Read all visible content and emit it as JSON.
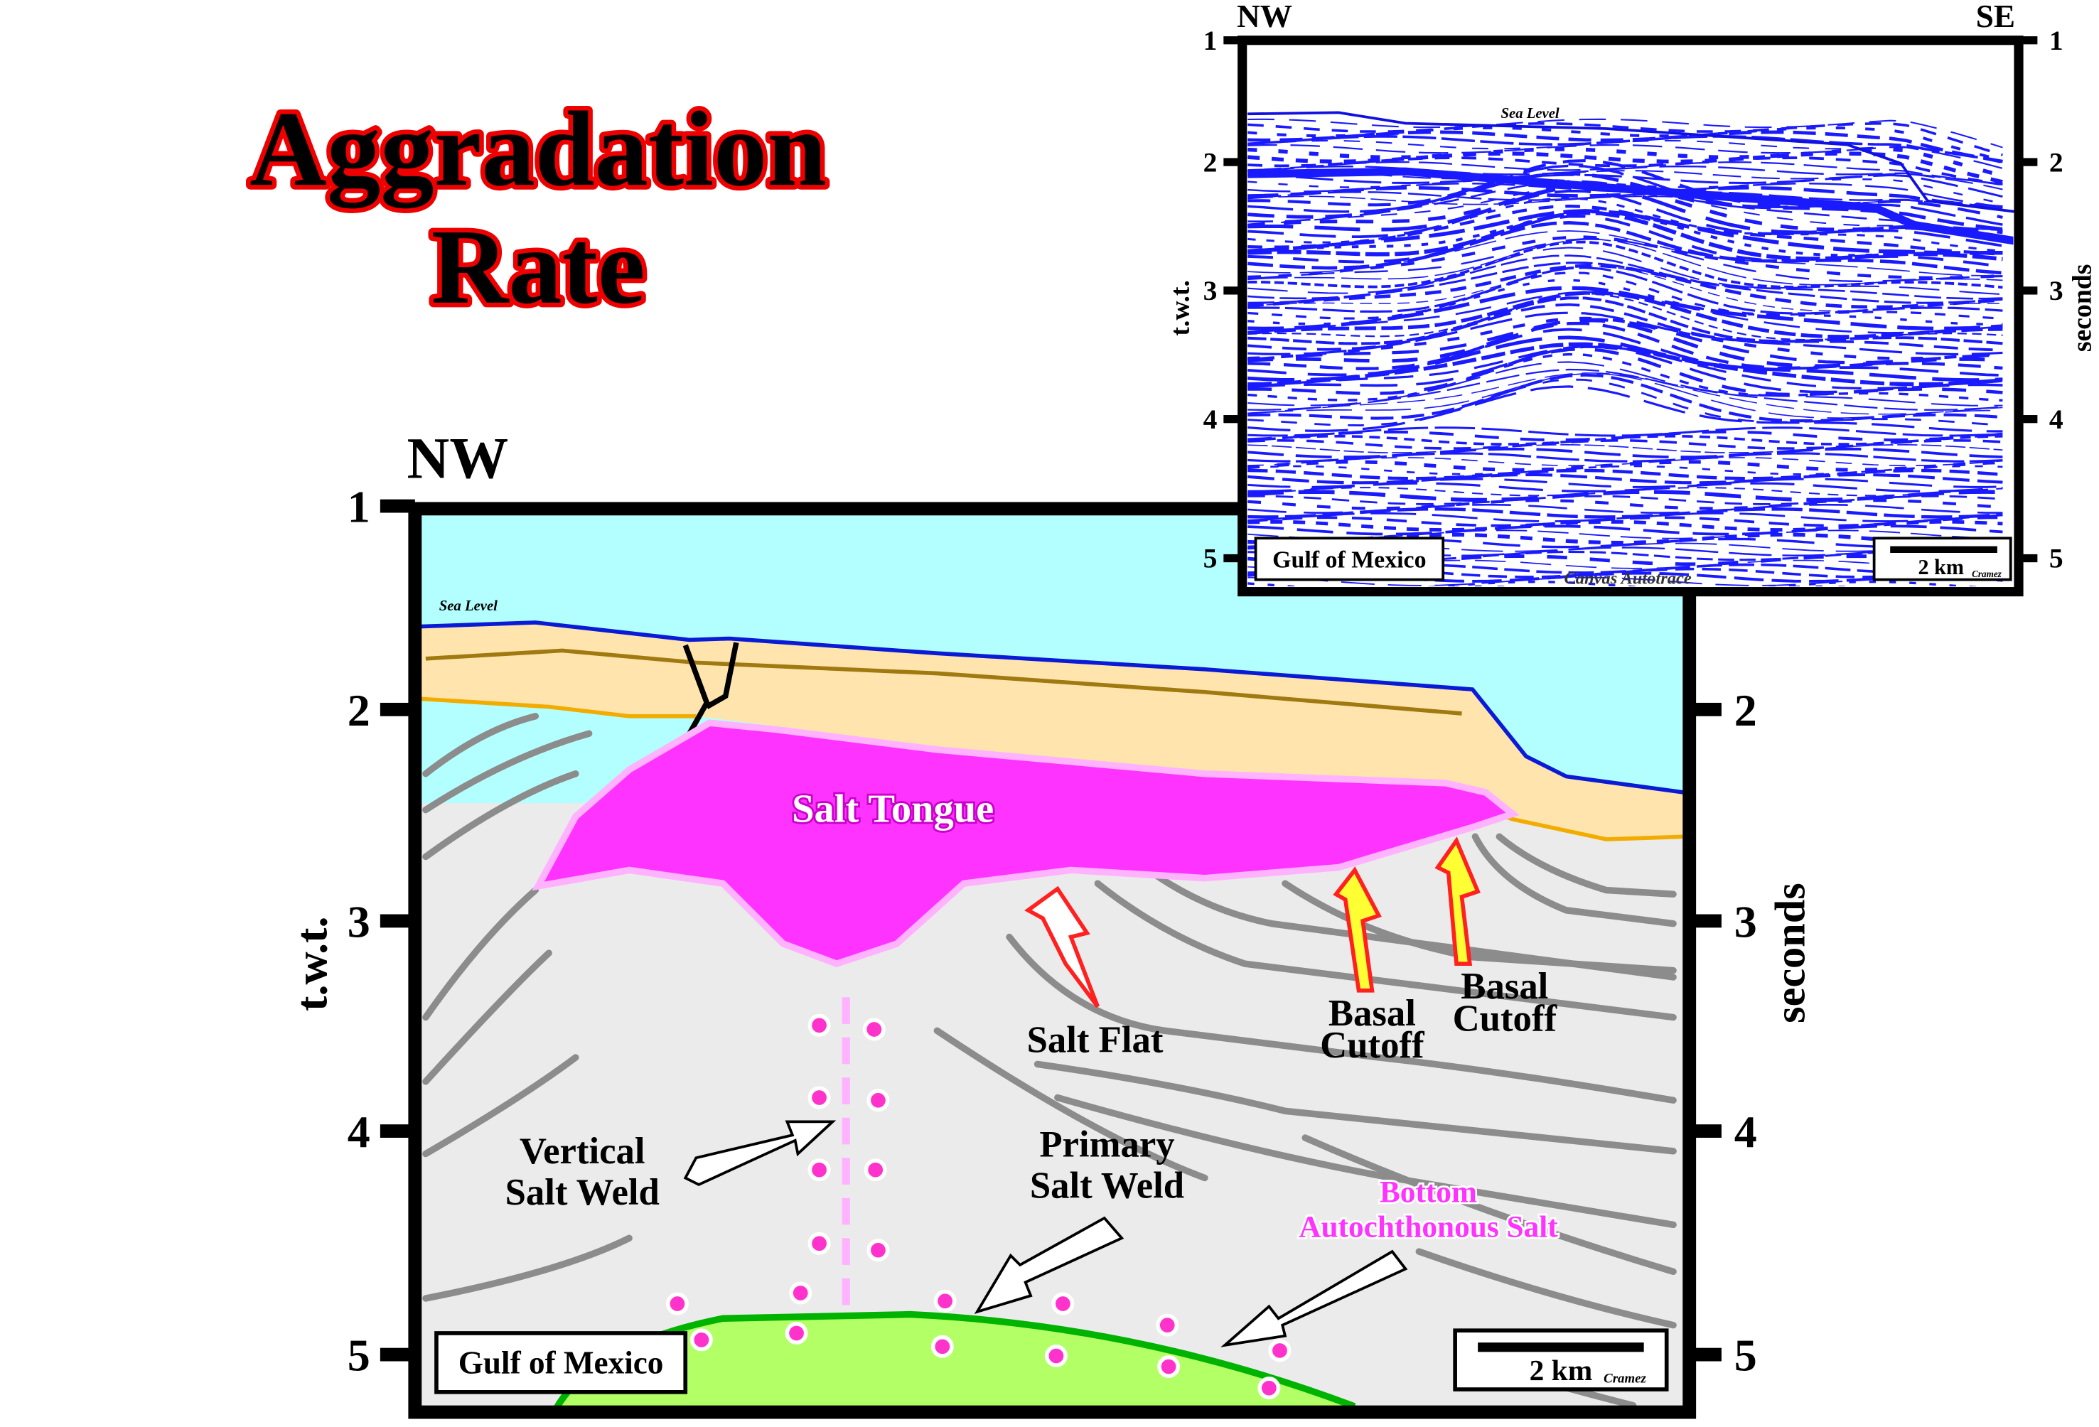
{
  "title": [
    "Aggradation",
    "Rate"
  ],
  "main": {
    "direction": "NW",
    "y_axis_left_label": "t.w.t.",
    "y_axis_right_label": "seconds",
    "left_ticks": [
      "1",
      "2",
      "3",
      "4",
      "5"
    ],
    "right_ticks": [
      "2",
      "3",
      "4",
      "5"
    ],
    "sea_level": "Sea Level",
    "salt_tongue": "Salt Tongue",
    "salt_flat": "Salt Flat",
    "basal_cutoff_1": [
      "Basal",
      "Cutoff"
    ],
    "basal_cutoff_2": [
      "Basal",
      "Cutoff"
    ],
    "vertical_salt_weld": [
      "Vertical",
      "Salt Weld"
    ],
    "primary_salt_weld": [
      "Primary",
      "Salt Weld"
    ],
    "bottom_autochthonous_salt": [
      "Bottom",
      "Autochthonous Salt"
    ],
    "location": "Gulf of Mexico",
    "scale": "2 km",
    "credit": "Cramez"
  },
  "inset": {
    "left_direction": "NW",
    "right_direction": "SE",
    "y_axis_left_label": "t.w.t.",
    "y_axis_right_label": "seconds",
    "left_ticks": [
      "1",
      "2",
      "3",
      "4",
      "5"
    ],
    "right_ticks": [
      "1",
      "2",
      "3",
      "4",
      "5"
    ],
    "sea_level": "Sea Level",
    "location": "Gulf of Mexico",
    "scale": "2 km",
    "credit": "Cramez",
    "watermark": "Canvas Autotrace"
  }
}
